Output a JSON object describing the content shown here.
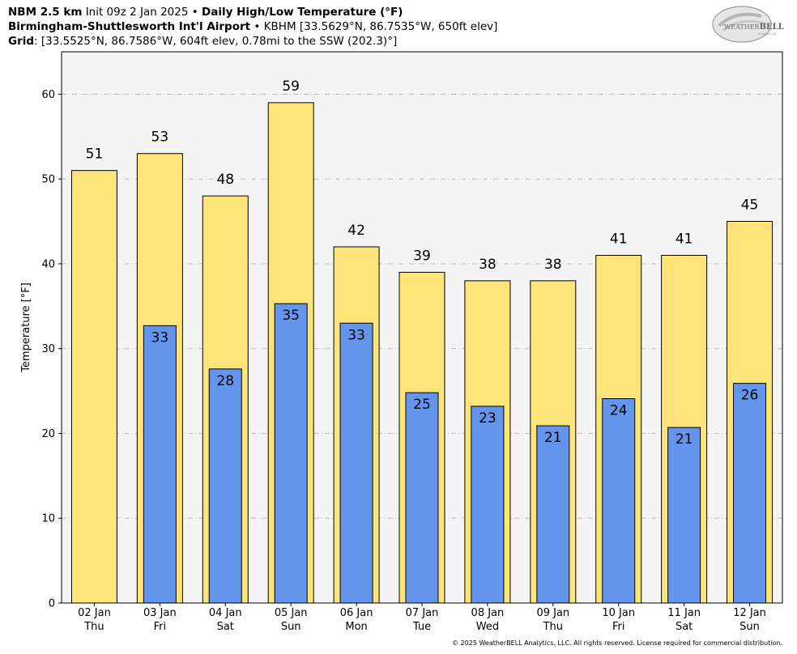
{
  "header": {
    "line1_bold1": "NBM 2.5 km",
    "line1_normal": "Init 09z 2 Jan 2025",
    "line1_sep": "•",
    "line1_bold2": "Daily High/Low Temperature (°F)",
    "line2_bold": "Birmingham-Shuttlesworth Int'l Airport",
    "line2_sep": "•",
    "line2_normal": "KBHM [33.5629°N, 86.7535°W, 650ft elev]",
    "line3_bold": "Grid",
    "line3_normal": ": [33.5525°N, 86.7586°W, 604ft elev, 0.78mi to the SSW (202.3)°]"
  },
  "logo": {
    "text1": "WEATHER",
    "text2": "BELL",
    "sub": "Analytics LLC"
  },
  "copyright": "© 2025 WeatherBELL Analytics, LLC. All rights reserved. License required for commercial distribution.",
  "chart_data": {
    "type": "bar",
    "categories": [
      "02 Jan",
      "03 Jan",
      "04 Jan",
      "05 Jan",
      "06 Jan",
      "07 Jan",
      "08 Jan",
      "09 Jan",
      "10 Jan",
      "11 Jan",
      "12 Jan"
    ],
    "weekdays": [
      "Thu",
      "Fri",
      "Sat",
      "Sun",
      "Mon",
      "Tue",
      "Wed",
      "Thu",
      "Fri",
      "Sat",
      "Sun"
    ],
    "series": [
      {
        "values": [
          51,
          53,
          48,
          59,
          42,
          39,
          38,
          38,
          41,
          41,
          45
        ],
        "labels": [
          "51",
          "53",
          "48",
          "59",
          "42",
          "39",
          "38",
          "38",
          "41",
          "41",
          "45"
        ],
        "color": "#ffe47a"
      },
      {
        "values": [
          null,
          32.7,
          27.6,
          35.3,
          33.0,
          24.8,
          23.2,
          20.9,
          24.1,
          20.7,
          25.9
        ],
        "labels": [
          "",
          "33",
          "28",
          "35",
          "33",
          "25",
          "23",
          "21",
          "24",
          "21",
          "26"
        ],
        "color": "#6495ed"
      }
    ],
    "ylabel": "Temperature [°F]",
    "ylim": [
      0,
      65
    ],
    "yticks": [
      0,
      10,
      20,
      30,
      40,
      50,
      60
    ],
    "grid": true,
    "plot_background": "#f4f4f4"
  }
}
